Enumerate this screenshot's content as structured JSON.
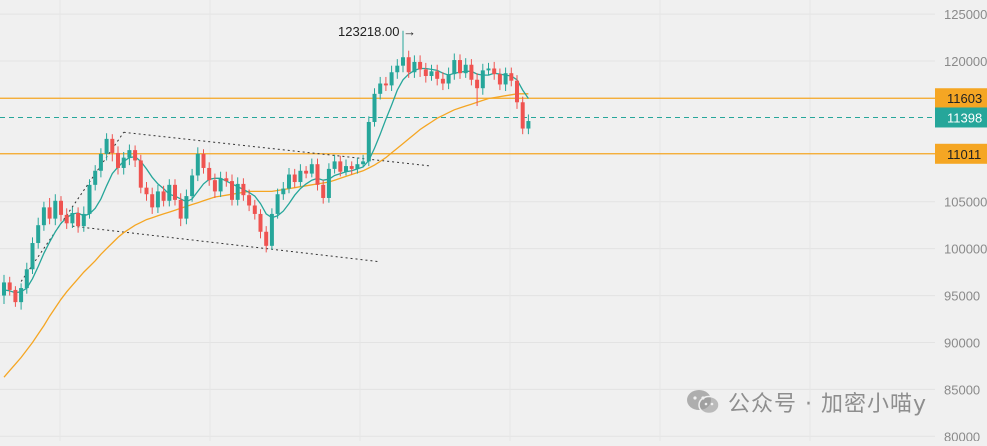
{
  "chart_data": {
    "type": "candlestick",
    "price_axis": {
      "ticks": [
        {
          "label": "125000",
          "value": 125000
        },
        {
          "label": "120000",
          "value": 120000
        },
        {
          "label": "105000",
          "value": 105000
        },
        {
          "label": "100000",
          "value": 100000
        },
        {
          "label": "95000",
          "value": 95000
        },
        {
          "label": "90000",
          "value": 90000
        },
        {
          "label": "85000",
          "value": 85000
        },
        {
          "label": "80000",
          "value": 80000
        }
      ],
      "range": [
        79500,
        126500
      ]
    },
    "price_tags": [
      {
        "label": "11603",
        "value": 116030,
        "style": "resistance"
      },
      {
        "label": "11398",
        "value": 113980,
        "style": "current"
      },
      {
        "label": "11011",
        "value": 110110,
        "style": "support"
      }
    ],
    "high_annotation": {
      "text": "123218.00 →",
      "value": 123218
    },
    "candles": [
      [
        95000,
        96400,
        97200,
        94100
      ],
      [
        96400,
        95600,
        97000,
        95000
      ],
      [
        95600,
        94300,
        96000,
        93800
      ],
      [
        94300,
        95800,
        96300,
        93500
      ],
      [
        95800,
        97800,
        98500,
        95200
      ],
      [
        97800,
        100600,
        101200,
        97300
      ],
      [
        100600,
        102500,
        103300,
        100000
      ],
      [
        102500,
        104400,
        105000,
        101900
      ],
      [
        104400,
        103200,
        105400,
        102600
      ],
      [
        103200,
        105100,
        105800,
        102500
      ],
      [
        105100,
        103600,
        105600,
        102900
      ],
      [
        103600,
        102700,
        104300,
        102100
      ],
      [
        102700,
        103800,
        104400,
        102200
      ],
      [
        103800,
        102400,
        104400,
        101700
      ],
      [
        102400,
        103700,
        104500,
        101800
      ],
      [
        103700,
        106800,
        107400,
        103200
      ],
      [
        106800,
        108300,
        108900,
        106200
      ],
      [
        108300,
        110100,
        110700,
        107600
      ],
      [
        110100,
        111700,
        112300,
        109400
      ],
      [
        111700,
        110200,
        112200,
        109300
      ],
      [
        110200,
        108600,
        110900,
        107900
      ],
      [
        108600,
        109700,
        110300,
        107900
      ],
      [
        109700,
        110500,
        111100,
        108900
      ],
      [
        110500,
        109400,
        111000,
        108700
      ],
      [
        109400,
        106500,
        110000,
        105900
      ],
      [
        106500,
        105800,
        107100,
        105100
      ],
      [
        105800,
        104400,
        106500,
        103700
      ],
      [
        104400,
        106100,
        106800,
        103800
      ],
      [
        106100,
        105100,
        106700,
        104500
      ],
      [
        105100,
        106800,
        107400,
        104500
      ],
      [
        106800,
        105200,
        107400,
        104600
      ],
      [
        105200,
        103200,
        105900,
        102400
      ],
      [
        103200,
        105600,
        106300,
        102600
      ],
      [
        105600,
        107800,
        108500,
        105000
      ],
      [
        107800,
        110100,
        110800,
        107200
      ],
      [
        110100,
        108600,
        110600,
        108000
      ],
      [
        108600,
        107300,
        109200,
        106700
      ],
      [
        107300,
        106100,
        108000,
        105400
      ],
      [
        106100,
        107500,
        108200,
        105500
      ],
      [
        107500,
        107200,
        108200,
        106600
      ],
      [
        107200,
        105200,
        107900,
        104600
      ],
      [
        105200,
        106900,
        107600,
        104600
      ],
      [
        106900,
        105700,
        107500,
        105100
      ],
      [
        105700,
        104600,
        106300,
        104000
      ],
      [
        104600,
        103700,
        105200,
        103100
      ],
      [
        103700,
        101800,
        104200,
        101100
      ],
      [
        101800,
        100300,
        102400,
        99600
      ],
      [
        100300,
        103700,
        104300,
        99900
      ],
      [
        103700,
        105800,
        106400,
        103200
      ],
      [
        105800,
        106400,
        107100,
        105200
      ],
      [
        106400,
        107900,
        108600,
        105900
      ],
      [
        107900,
        107100,
        108500,
        106500
      ],
      [
        107100,
        108300,
        109000,
        106600
      ],
      [
        108300,
        108000,
        108800,
        107500
      ],
      [
        108000,
        109000,
        109600,
        107600
      ],
      [
        109000,
        106800,
        109600,
        106200
      ],
      [
        106800,
        105400,
        107300,
        104800
      ],
      [
        105400,
        108500,
        109100,
        104900
      ],
      [
        108500,
        109300,
        110000,
        108000
      ],
      [
        109300,
        108200,
        109900,
        107700
      ],
      [
        108200,
        108800,
        109500,
        107800
      ],
      [
        108800,
        108500,
        109300,
        107900
      ],
      [
        108500,
        109000,
        109700,
        108000
      ],
      [
        109000,
        109300,
        110000,
        108700
      ],
      [
        109300,
        113500,
        114100,
        108800
      ],
      [
        113500,
        116500,
        117100,
        113000
      ],
      [
        116500,
        117600,
        118300,
        115900
      ],
      [
        117600,
        117400,
        118300,
        116800
      ],
      [
        117400,
        118800,
        119500,
        116800
      ],
      [
        118800,
        119500,
        120200,
        118100
      ],
      [
        119500,
        120400,
        123218,
        118800
      ],
      [
        120400,
        118800,
        121100,
        118200
      ],
      [
        118800,
        119900,
        120600,
        118200
      ],
      [
        119900,
        119100,
        120600,
        118300
      ],
      [
        119100,
        118400,
        119800,
        117700
      ],
      [
        118400,
        118900,
        119600,
        117900
      ],
      [
        118900,
        118100,
        119600,
        117400
      ],
      [
        118100,
        117600,
        118800,
        116900
      ],
      [
        117600,
        118600,
        119300,
        117000
      ],
      [
        118600,
        120100,
        120800,
        118000
      ],
      [
        120100,
        118700,
        120700,
        118100
      ],
      [
        118700,
        119600,
        120300,
        118200
      ],
      [
        119600,
        118000,
        120200,
        117400
      ],
      [
        118000,
        117100,
        118700,
        115200
      ],
      [
        117100,
        119000,
        119700,
        116400
      ],
      [
        119000,
        119200,
        119800,
        118500
      ],
      [
        119200,
        118600,
        119900,
        118000
      ],
      [
        118600,
        117500,
        119200,
        116900
      ],
      [
        117500,
        118700,
        119300,
        116800
      ],
      [
        118700,
        117900,
        119300,
        117300
      ],
      [
        117900,
        115600,
        118500,
        114900
      ],
      [
        115600,
        112800,
        116200,
        112200
      ],
      [
        112800,
        113600,
        114300,
        112200
      ]
    ],
    "moving_averages": [
      {
        "color": "#26a69a"
      },
      {
        "color": "#f5a623"
      }
    ],
    "ma_fast": [
      95600,
      95500,
      95300,
      95400,
      95800,
      96800,
      98100,
      99500,
      100700,
      101800,
      102700,
      103300,
      103700,
      103800,
      103500,
      103700,
      104300,
      105300,
      106700,
      108000,
      108700,
      109300,
      109700,
      109800,
      109300,
      108500,
      107600,
      106900,
      106400,
      105800,
      105600,
      105300,
      105000,
      105300,
      106100,
      106900,
      107400,
      107500,
      107500,
      107200,
      106900,
      106600,
      106300,
      106000,
      105600,
      104800,
      103700,
      103300,
      103500,
      104000,
      104800,
      105700,
      106400,
      106900,
      107300,
      107500,
      107300,
      107400,
      107800,
      108000,
      108200,
      108300,
      108500,
      108700,
      109400,
      110700,
      112200,
      113800,
      115300,
      116900,
      118000,
      118600,
      119000,
      119200,
      119200,
      119100,
      119000,
      118700,
      118500,
      118700,
      118800,
      118900,
      118900,
      118600,
      118500,
      118500,
      118700,
      118600,
      118500,
      118400,
      118000,
      116900,
      116000
    ],
    "ma_slow": [
      86300,
      87000,
      87700,
      88400,
      89200,
      90000,
      90900,
      91800,
      92800,
      93700,
      94600,
      95400,
      96100,
      96800,
      97500,
      98100,
      98700,
      99400,
      100000,
      100600,
      101200,
      101700,
      102100,
      102500,
      102800,
      103100,
      103300,
      103500,
      103700,
      103900,
      104100,
      104300,
      104500,
      104700,
      104900,
      105100,
      105300,
      105500,
      105600,
      105700,
      105800,
      105900,
      106000,
      106100,
      106100,
      106100,
      106100,
      106100,
      106200,
      106300,
      106400,
      106500,
      106600,
      106700,
      106800,
      106900,
      107000,
      107100,
      107300,
      107500,
      107700,
      107900,
      108100,
      108300,
      108600,
      108900,
      109300,
      109700,
      110200,
      110700,
      111200,
      111700,
      112200,
      112700,
      113100,
      113500,
      113900,
      114200,
      114500,
      114800,
      115000,
      115200,
      115400,
      115600,
      115800,
      116000,
      116100,
      116200,
      116300,
      116400,
      116500,
      116500,
      116500
    ]
  },
  "watermark": {
    "text": "公众号 · 加密小喵y"
  },
  "colors": {
    "up": "#26a69a",
    "down": "#ef5350",
    "horizontal_line": "#f5a623",
    "current_line": "#26a69a",
    "trendline": "#333333"
  }
}
